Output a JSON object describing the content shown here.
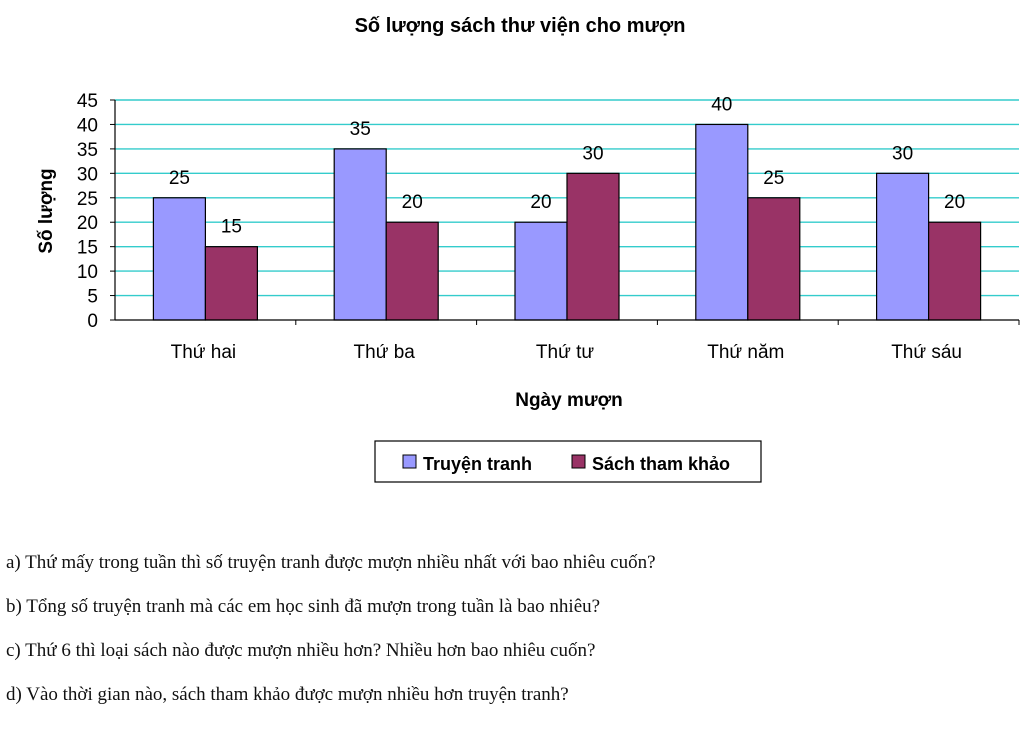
{
  "chart_data": {
    "type": "bar",
    "title": "Số lượng sách thư viện cho mượn",
    "xlabel": "Ngày mượn",
    "ylabel": "Số lượng",
    "ylim": [
      0,
      45
    ],
    "yticks": [
      0,
      5,
      10,
      15,
      20,
      25,
      30,
      35,
      40,
      45
    ],
    "categories": [
      "Thứ hai",
      "Thứ ba",
      "Thứ tư",
      "Thứ năm",
      "Thứ sáu"
    ],
    "series": [
      {
        "name": "Truyện tranh",
        "values": [
          25,
          35,
          20,
          40,
          30
        ],
        "color": "#9999ff"
      },
      {
        "name": "Sách tham khảo",
        "values": [
          15,
          20,
          30,
          25,
          20
        ],
        "color": "#993366"
      }
    ],
    "grid": true,
    "gridline_color": "#33cccc",
    "legend_position": "bottom"
  },
  "questions": {
    "a": "a) Thứ mấy trong tuần thì số truyện tranh được mượn nhiều nhất với bao nhiêu cuốn?",
    "b": "b) Tổng số truyện tranh mà các em học sinh đã mượn trong tuần là bao nhiêu?",
    "c": "c) Thứ 6 thì loại sách nào được mượn nhiều hơn? Nhiều hơn bao nhiêu cuốn?",
    "d": "d) Vào thời gian nào, sách tham khảo được mượn nhiều hơn truyện tranh?"
  }
}
